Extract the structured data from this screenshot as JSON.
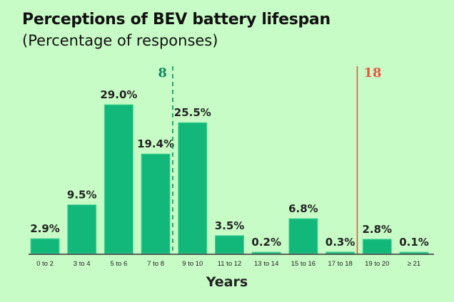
{
  "chart_data": {
    "type": "bar",
    "title": "Perceptions of BEV battery lifespan",
    "subtitle": "(Percentage of responses)",
    "xlabel": "Years",
    "ylabel": "",
    "categories": [
      "0 to 2",
      "3 to 4",
      "5 to 6",
      "7 to 8",
      "9 to 10",
      "11 to 12",
      "13 to 14",
      "15 to 16",
      "17 to 18",
      "19 to 20",
      "≥ 21"
    ],
    "values": [
      2.9,
      9.5,
      29.0,
      19.4,
      25.5,
      3.5,
      0.2,
      6.8,
      0.3,
      2.8,
      0.1
    ],
    "data_labels": [
      "2.9%",
      "9.5%",
      "29.0%",
      "19.4%",
      "25.5%",
      "3.5%",
      "0.2%",
      "6.8%",
      "0.3%",
      "2.8%",
      "0.1%"
    ],
    "ylim": [
      0,
      29
    ],
    "grid": false,
    "bar_color": "#12b87a",
    "reference_lines": [
      {
        "label": "8",
        "after_category": "7 to 8",
        "style": "dashed",
        "color": "#0e8a5c"
      },
      {
        "label": "18",
        "after_category": "17 to 18",
        "style": "solid",
        "color": "#e8553f"
      }
    ]
  }
}
